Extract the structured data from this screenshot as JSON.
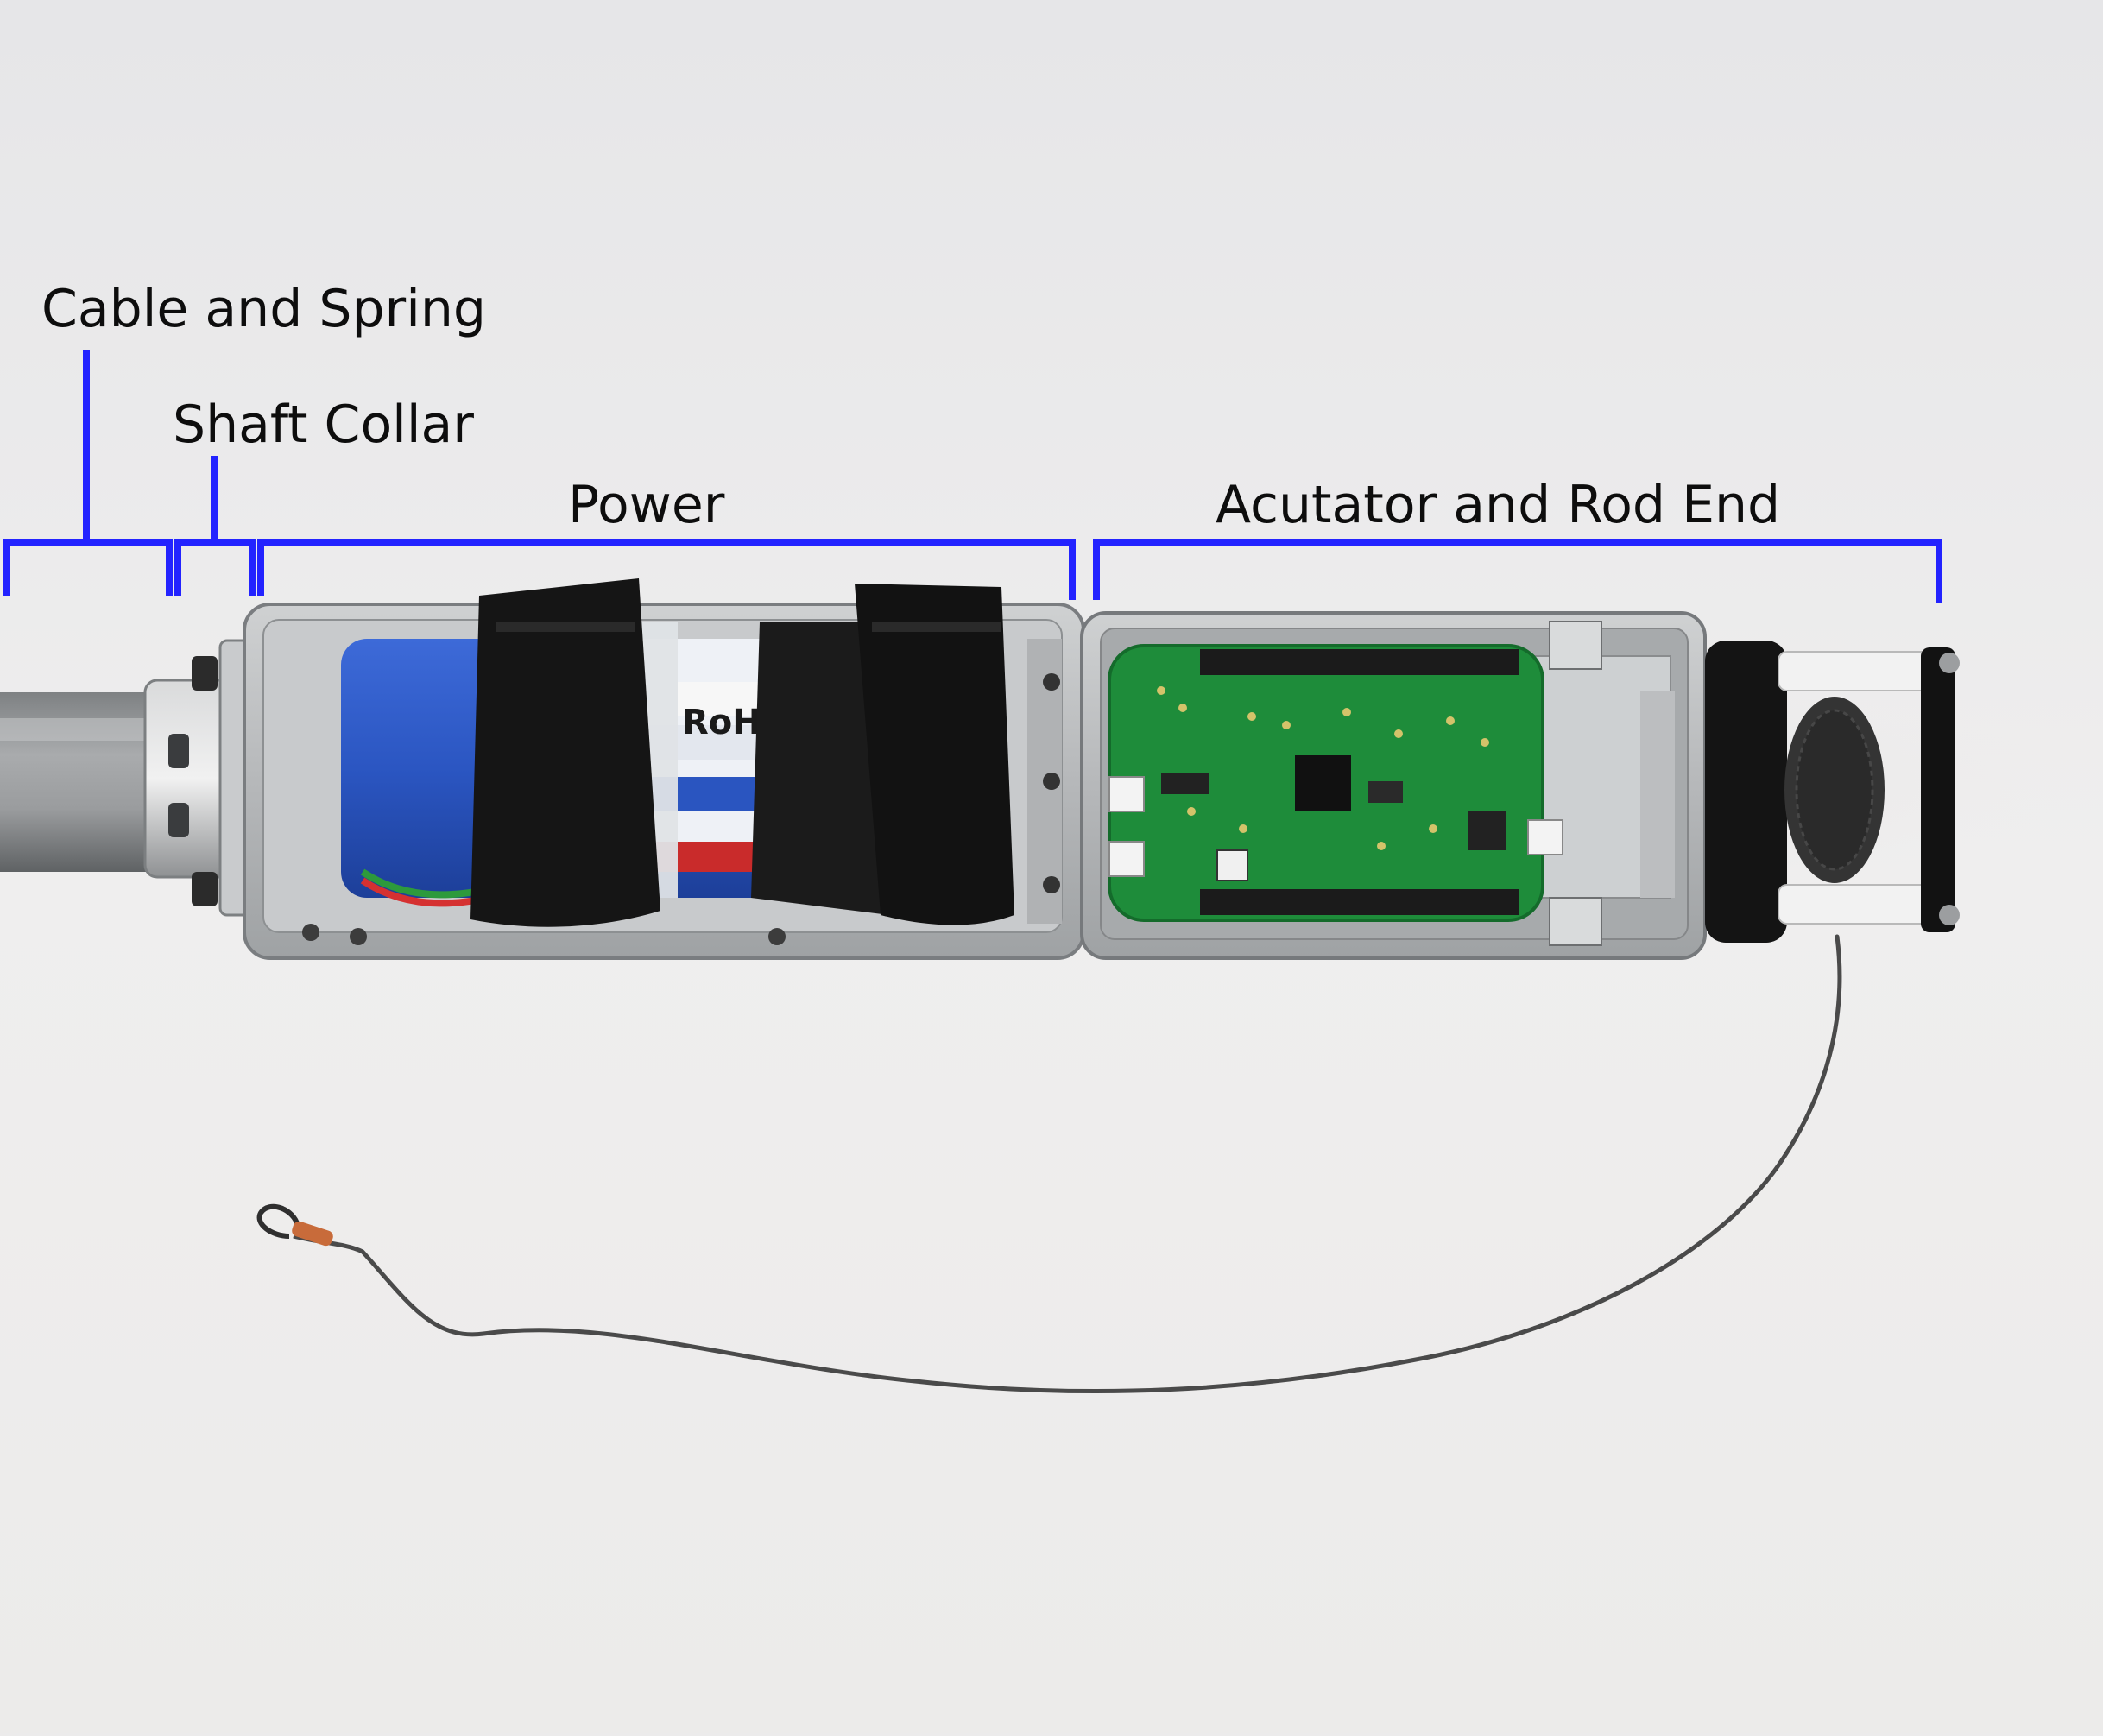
{
  "annotations": {
    "cable_and_spring": "Cable and Spring",
    "shaft_collar": "Shaft Collar",
    "power": "Power",
    "actuator_and_rod_end": "Acutator and Rod End"
  },
  "colors": {
    "background": "#ecebeb",
    "bracket": "#2323ff",
    "text": "#0d0d0d",
    "aluminum": "#b9bcbf",
    "battery": "#2c57c4",
    "strap": "#151515",
    "pcb": "#1e8c3a",
    "cable": "#4a4a4a"
  },
  "scene": {
    "description_icon": "device-photo",
    "battery_print": "RoHS"
  }
}
